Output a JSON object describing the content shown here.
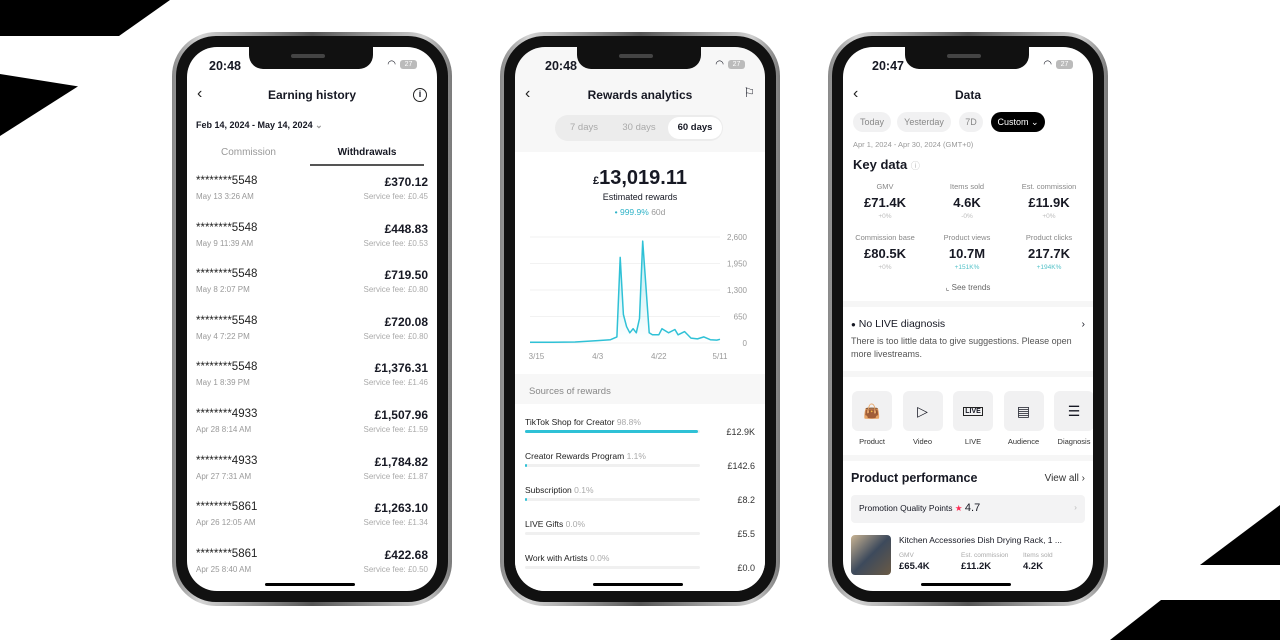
{
  "colors": {
    "accent": "#2fc1d6",
    "star": "#fe2c55",
    "dark": "#000000"
  },
  "phone1": {
    "time": "20:48",
    "battery": "27",
    "title": "Earning history",
    "date_range": "Feb 14, 2024 - May 14, 2024",
    "tabs": [
      {
        "label": "Commission",
        "active": false
      },
      {
        "label": "Withdrawals",
        "active": true
      }
    ],
    "rows": [
      {
        "account": "********5548",
        "date": "May 13 3:26 AM",
        "amount": "£370.12",
        "fee": "Service fee: £0.45"
      },
      {
        "account": "********5548",
        "date": "May 9 11:39 AM",
        "amount": "£448.83",
        "fee": "Service fee: £0.53"
      },
      {
        "account": "********5548",
        "date": "May 8 2:07 PM",
        "amount": "£719.50",
        "fee": "Service fee: £0.80"
      },
      {
        "account": "********5548",
        "date": "May 4 7:22 PM",
        "amount": "£720.08",
        "fee": "Service fee: £0.80"
      },
      {
        "account": "********5548",
        "date": "May 1 8:39 PM",
        "amount": "£1,376.31",
        "fee": "Service fee: £1.46"
      },
      {
        "account": "********4933",
        "date": "Apr 28 8:14 AM",
        "amount": "£1,507.96",
        "fee": "Service fee: £1.59"
      },
      {
        "account": "********4933",
        "date": "Apr 27 7:31 AM",
        "amount": "£1,784.82",
        "fee": "Service fee: £1.87"
      },
      {
        "account": "********5861",
        "date": "Apr 26 12:05 AM",
        "amount": "£1,263.10",
        "fee": "Service fee: £1.34"
      },
      {
        "account": "********5861",
        "date": "Apr 25 8:40 AM",
        "amount": "£422.68",
        "fee": "Service fee: £0.50"
      }
    ]
  },
  "phone2": {
    "time": "20:48",
    "battery": "27",
    "title": "Rewards analytics",
    "periods": [
      {
        "label": "7 days",
        "active": false
      },
      {
        "label": "30 days",
        "active": false
      },
      {
        "label": "60 days",
        "active": true
      }
    ],
    "currency": "£",
    "total": "13,019.11",
    "total_label": "Estimated rewards",
    "change": "999.9%",
    "change_period": "60d",
    "sources_title": "Sources of rewards",
    "sources": [
      {
        "name": "TikTok Shop for Creator",
        "pct": "98.8%",
        "share": 98.8,
        "value": "£12.9K"
      },
      {
        "name": "Creator Rewards Program",
        "pct": "1.1%",
        "share": 1.1,
        "value": "£142.6"
      },
      {
        "name": "Subscription",
        "pct": "0.1%",
        "share": 0.1,
        "value": "£8.2"
      },
      {
        "name": "LIVE Gifts",
        "pct": "0.0%",
        "share": 0,
        "value": "£5.5"
      },
      {
        "name": "Work with Artists",
        "pct": "0.0%",
        "share": 0,
        "value": "£0.0"
      }
    ]
  },
  "chart_data": {
    "type": "area",
    "ylim": [
      0,
      2600
    ],
    "yticks": [
      "2,600",
      "1,950",
      "1,300",
      "650",
      "0"
    ],
    "xticks": [
      "3/15",
      "4/3",
      "4/22",
      "5/11"
    ],
    "grid": true,
    "x": [
      "3/13",
      "3/20",
      "3/27",
      "4/3",
      "4/7",
      "4/9",
      "4/10",
      "4/11",
      "4/12",
      "4/13",
      "4/14",
      "4/15",
      "4/16",
      "4/17",
      "4/18",
      "4/19",
      "4/20",
      "4/22",
      "4/23",
      "4/25",
      "4/27",
      "4/28",
      "4/30",
      "5/2",
      "5/4",
      "5/6",
      "5/8",
      "5/10",
      "5/11"
    ],
    "values": [
      20,
      20,
      25,
      60,
      80,
      150,
      2100,
      700,
      400,
      250,
      350,
      250,
      600,
      2500,
      1400,
      250,
      200,
      200,
      350,
      250,
      330,
      200,
      280,
      120,
      100,
      150,
      80,
      70,
      90
    ]
  },
  "phone3": {
    "time": "20:47",
    "battery": "27",
    "title": "Data",
    "chips": [
      {
        "label": "Today",
        "active": false
      },
      {
        "label": "Yesterday",
        "active": false
      },
      {
        "label": "7D",
        "active": false
      },
      {
        "label": "Custom",
        "active": true
      }
    ],
    "date_range": "Apr 1, 2024 - Apr 30, 2024 (GMT+0)",
    "key_data_title": "Key data",
    "metrics": [
      {
        "label": "GMV",
        "value": "£71.4K",
        "change": "+0%"
      },
      {
        "label": "Items sold",
        "value": "4.6K",
        "change": "-0%"
      },
      {
        "label": "Est. commission",
        "value": "£11.9K",
        "change": "+0%"
      },
      {
        "label": "Commission base",
        "value": "£80.5K",
        "change": "+0%"
      },
      {
        "label": "Product views",
        "value": "10.7M",
        "change": "+151K%"
      },
      {
        "label": "Product clicks",
        "value": "217.7K",
        "change": "+194K%"
      }
    ],
    "see_trends": "See trends",
    "diagnosis_title": "No LIVE diagnosis",
    "diagnosis_text": "There is too little data to give suggestions. Please open more livestreams.",
    "tools": [
      {
        "label": "Product",
        "icon": "shopping-bag-icon"
      },
      {
        "label": "Video",
        "icon": "play-icon"
      },
      {
        "label": "LIVE",
        "icon": "live-icon"
      },
      {
        "label": "Audience",
        "icon": "id-card-icon"
      },
      {
        "label": "Diagnosis",
        "icon": "clipboard-icon"
      }
    ],
    "perf_title": "Product performance",
    "view_all": "View all",
    "promo_label": "Promotion Quality Points",
    "promo_score": "4.7",
    "product": {
      "name": "Kitchen Accessories Dish Drying Rack, 1 ...",
      "gmv_label": "GMV",
      "gmv": "£65.4K",
      "comm_label": "Est. commission",
      "comm": "£11.2K",
      "sold_label": "Items sold",
      "sold": "4.2K"
    }
  }
}
